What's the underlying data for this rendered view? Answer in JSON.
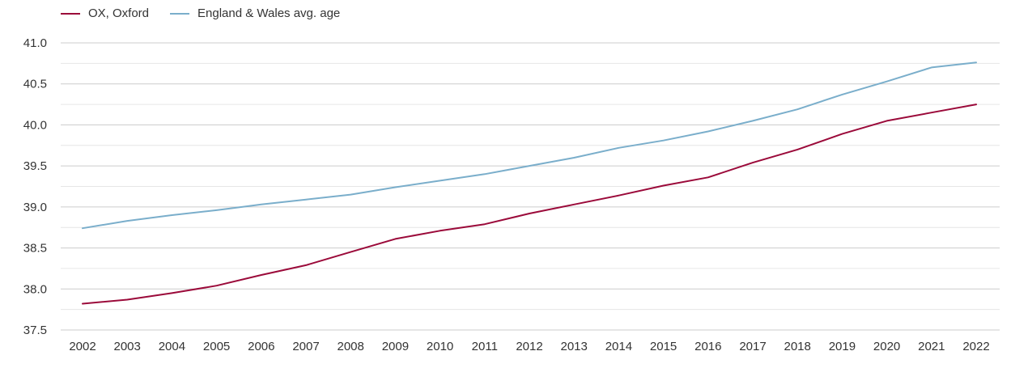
{
  "colors": {
    "series_ox": "#9b0a3a",
    "series_ew": "#7aaecb",
    "grid_major": "#cccccc",
    "grid_minor": "#e6e6e6",
    "axis_text": "#333333"
  },
  "legend": {
    "items": [
      {
        "label": "OX, Oxford",
        "color": "#9b0a3a"
      },
      {
        "label": "England & Wales avg. age",
        "color": "#7aaecb"
      }
    ],
    "placement": "top-left"
  },
  "chart_data": {
    "type": "line",
    "title": "",
    "xlabel": "",
    "ylabel": "",
    "x": [
      "2002",
      "2003",
      "2004",
      "2005",
      "2006",
      "2007",
      "2008",
      "2009",
      "2010",
      "2011",
      "2012",
      "2013",
      "2014",
      "2015",
      "2016",
      "2017",
      "2018",
      "2019",
      "2020",
      "2021",
      "2022"
    ],
    "ylim": [
      37.5,
      41.0
    ],
    "yticks": [
      37.5,
      38.0,
      38.5,
      39.0,
      39.5,
      40.0,
      40.5,
      41.0
    ],
    "ytick_labels": [
      "37.5",
      "38.0",
      "38.5",
      "39.0",
      "39.5",
      "40.0",
      "40.5",
      "41.0"
    ],
    "grid": true,
    "minor_grid": true,
    "series": [
      {
        "name": "OX, Oxford",
        "color": "#9b0a3a",
        "values": [
          37.82,
          37.87,
          37.95,
          38.04,
          38.17,
          38.29,
          38.45,
          38.61,
          38.71,
          38.79,
          38.92,
          39.03,
          39.14,
          39.26,
          39.36,
          39.54,
          39.7,
          39.89,
          40.05,
          40.15,
          40.25
        ]
      },
      {
        "name": "England & Wales avg. age",
        "color": "#7aaecb",
        "values": [
          38.74,
          38.83,
          38.9,
          38.96,
          39.03,
          39.09,
          39.15,
          39.24,
          39.32,
          39.4,
          39.5,
          39.6,
          39.72,
          39.81,
          39.92,
          40.05,
          40.19,
          40.37,
          40.53,
          40.7,
          40.76
        ]
      }
    ]
  }
}
